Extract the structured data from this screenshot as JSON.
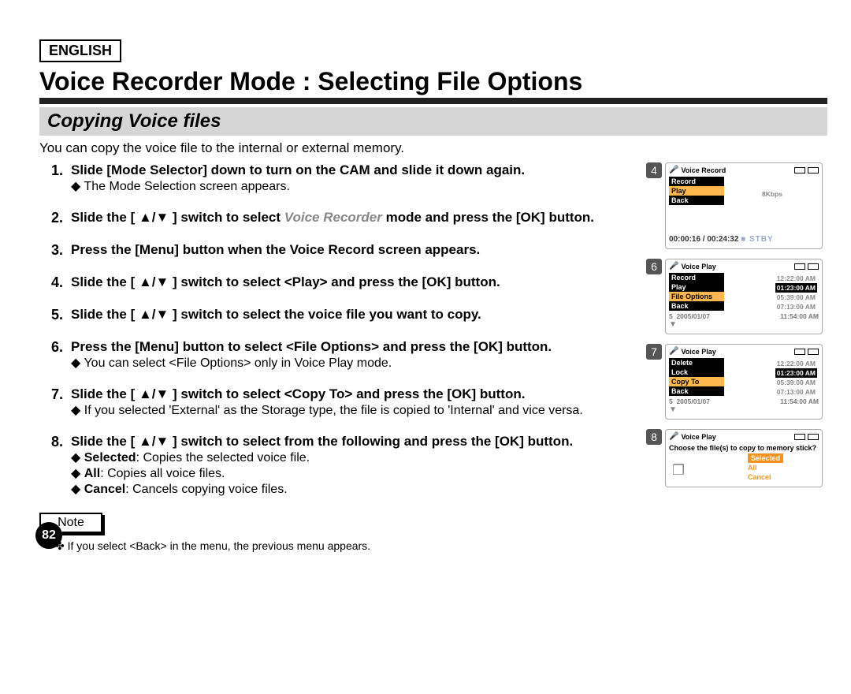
{
  "language": "ENGLISH",
  "title": "Voice Recorder Mode : Selecting File Options",
  "subtitle": "Copying Voice files",
  "intro": "You can copy the voice file to the internal or external memory.",
  "steps": [
    {
      "n": "1.",
      "main": "Slide [Mode Selector] down to turn on the CAM and slide it down again.",
      "notes": [
        "The Mode Selection screen appears."
      ]
    },
    {
      "n": "2.",
      "main_prefix": "Slide the [ ▲/▼ ] switch to select ",
      "main_italic": "Voice Recorder",
      "main_suffix": " mode and press the [OK] button.",
      "notes": []
    },
    {
      "n": "3.",
      "main": "Press the [Menu] button when the Voice Record screen appears.",
      "notes": []
    },
    {
      "n": "4.",
      "main": "Slide the [ ▲/▼ ] switch to select <Play> and press the [OK] button.",
      "notes": []
    },
    {
      "n": "5.",
      "main": "Slide the [ ▲/▼ ] switch to select the voice file you want to copy.",
      "notes": []
    },
    {
      "n": "6.",
      "main": "Press the [Menu] button to select <File Options> and press the [OK] button.",
      "notes": [
        "You can select <File Options> only in Voice Play mode."
      ]
    },
    {
      "n": "7.",
      "main": "Slide the [ ▲/▼ ] switch to select <Copy To> and press the [OK] button.",
      "notes": [
        "If you selected 'External' as the Storage type, the file is copied to 'Internal' and vice versa."
      ]
    },
    {
      "n": "8.",
      "main": "Slide the [ ▲/▼ ] switch to select from the following and press the [OK] button.",
      "bold_notes": [
        {
          "b": "Selected",
          "t": ": Copies the selected voice file."
        },
        {
          "b": "All",
          "t": ": Copies all voice files."
        },
        {
          "b": "Cancel",
          "t": ": Cancels copying voice files."
        }
      ]
    }
  ],
  "note_label": "Note",
  "back_note": "If you select <Back> in the menu, the previous menu appears.",
  "page_num": "82",
  "screens": {
    "s4": {
      "num": "4",
      "hdr": "Voice Record",
      "menu": [
        "Record",
        "Play",
        "Back"
      ],
      "sel": "Play",
      "kbps": "8Kbps",
      "timer": "00:00:16 / 00:24:32",
      "stby": "STBY"
    },
    "s6": {
      "num": "6",
      "hdr": "Voice Play",
      "menu": [
        "Record",
        "Play",
        "File Options",
        "Back"
      ],
      "sel": "File Options",
      "times": [
        "12:22:00 AM",
        "01:23:00 AM",
        "05:39:00 AM",
        "07:13:00 AM"
      ],
      "sel_time": "01:23:00 AM",
      "bottom_n": "5",
      "bottom_d": "2005/01/07",
      "bottom_t": "11:54:00 AM"
    },
    "s7": {
      "num": "7",
      "hdr": "Voice Play",
      "menu": [
        "Delete",
        "Lock",
        "Copy To",
        "Back"
      ],
      "sel": "Copy To",
      "times": [
        "12:22:00 AM",
        "01:23:00 AM",
        "05:39:00 AM",
        "07:13:00 AM"
      ],
      "sel_time": "01:23:00 AM",
      "bottom_n": "5",
      "bottom_d": "2005/01/07",
      "bottom_t": "11:54:00 AM"
    },
    "s8": {
      "num": "8",
      "hdr": "Voice Play",
      "dialog": "Choose the file(s) to copy to memory stick?",
      "opts": [
        "Selected",
        "All",
        "Cancel"
      ],
      "sel": "Selected"
    }
  }
}
